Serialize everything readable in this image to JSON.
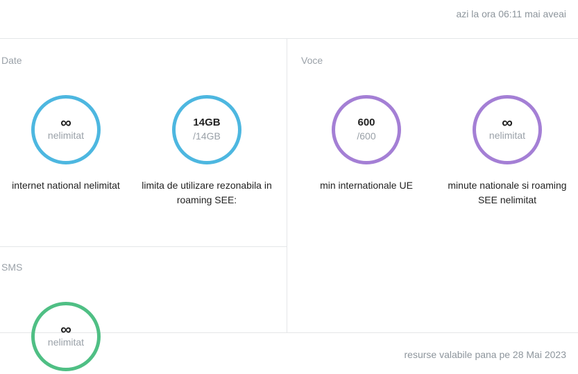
{
  "header": {
    "last_update": "azi la ora 06:11 mai aveai"
  },
  "footer": {
    "validity": "resurse valabile pana pe 28 Mai 2023"
  },
  "colors": {
    "data": "#4db7e0",
    "voice": "#a47fd5",
    "sms": "#4fbf84"
  },
  "sections": {
    "date": {
      "title": "Date",
      "items": [
        {
          "icon": "infinity-icon",
          "value": "∞",
          "sub": "nelimitat",
          "label": "internet national nelimitat"
        },
        {
          "value": "14GB",
          "sub": "/14GB",
          "label": "limita de utilizare rezonabila in roaming SEE:"
        }
      ]
    },
    "voce": {
      "title": "Voce",
      "items": [
        {
          "value": "600",
          "sub": "/600",
          "label": "min internationale UE"
        },
        {
          "icon": "infinity-icon",
          "value": "∞",
          "sub": "nelimitat",
          "label": "minute nationale si roaming SEE nelimitat"
        }
      ]
    },
    "sms": {
      "title": "SMS",
      "items": [
        {
          "icon": "infinity-icon",
          "value": "∞",
          "sub": "nelimitat"
        }
      ]
    }
  }
}
